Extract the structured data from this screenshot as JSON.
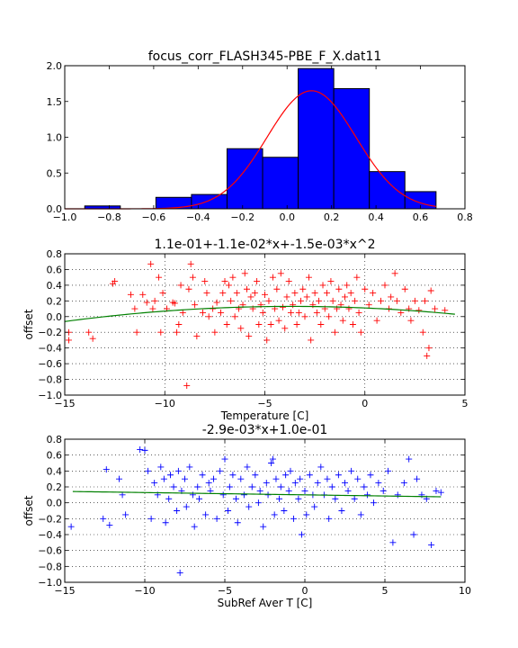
{
  "chart_data": [
    {
      "type": "bar",
      "title": "focus_corr_FLASH345-PBE_F_X.dat11",
      "xlabel": "",
      "ylabel": "",
      "xlim": [
        -1.0,
        0.8
      ],
      "ylim": [
        0.0,
        2.0
      ],
      "xticks": [
        "−1.0",
        "−0.8",
        "−0.6",
        "−0.4",
        "−0.2",
        "0.0",
        "0.2",
        "0.4",
        "0.6",
        "0.8"
      ],
      "yticks": [
        "0.0",
        "0.5",
        "1.0",
        "1.5",
        "2.0"
      ],
      "bar_color": "#0000ff",
      "fit_color": "#ff0000",
      "grid": false,
      "bins": [
        {
          "x0": -0.91,
          "x1": -0.75,
          "value": 0.04
        },
        {
          "x0": -0.75,
          "x1": -0.59,
          "value": 0.0
        },
        {
          "x0": -0.59,
          "x1": -0.43,
          "value": 0.16
        },
        {
          "x0": -0.43,
          "x1": -0.27,
          "value": 0.2
        },
        {
          "x0": -0.27,
          "x1": -0.11,
          "value": 0.84
        },
        {
          "x0": -0.11,
          "x1": 0.05,
          "value": 0.72
        },
        {
          "x0": 0.05,
          "x1": 0.21,
          "value": 1.96
        },
        {
          "x0": 0.21,
          "x1": 0.37,
          "value": 1.68
        },
        {
          "x0": 0.37,
          "x1": 0.53,
          "value": 0.52
        },
        {
          "x0": 0.53,
          "x1": 0.67,
          "value": 0.24
        }
      ],
      "fit_curve": {
        "type": "gaussian",
        "peak": 1.65,
        "mean": 0.11,
        "sigma": 0.2,
        "x_range": [
          -1.0,
          0.67
        ]
      }
    },
    {
      "type": "scatter",
      "title": "1.1e-01+-1.1e-02*x+-1.5e-03*x^2",
      "xlabel": "Temperature [C]",
      "ylabel": "offset",
      "xlim": [
        -15,
        5
      ],
      "ylim": [
        -1.0,
        0.8
      ],
      "xticks": [
        "−15",
        "−10",
        "−5",
        "0",
        "5"
      ],
      "yticks": [
        "−1.0",
        "−0.8",
        "−0.6",
        "−0.4",
        "−0.2",
        "0.0",
        "0.2",
        "0.4",
        "0.6",
        "0.8"
      ],
      "grid": true,
      "marker_color": "#ff0000",
      "fit_color": "#008000",
      "fit": {
        "type": "poly2",
        "c0": 0.11,
        "c1": -0.011,
        "c2": -0.0015,
        "x_range": [
          -15,
          4.5
        ]
      },
      "points": [
        [
          -14.8,
          -0.3
        ],
        [
          -14.8,
          -0.2
        ],
        [
          -13.8,
          -0.2
        ],
        [
          -13.6,
          -0.28
        ],
        [
          -12.6,
          0.42
        ],
        [
          -12.5,
          0.45
        ],
        [
          -11.7,
          0.28
        ],
        [
          -11.5,
          0.1
        ],
        [
          -11.4,
          -0.2
        ],
        [
          -11.1,
          0.28
        ],
        [
          -10.9,
          0.18
        ],
        [
          -10.7,
          0.67
        ],
        [
          -10.6,
          0.1
        ],
        [
          -10.5,
          0.2
        ],
        [
          -10.3,
          0.5
        ],
        [
          -10.2,
          -0.2
        ],
        [
          -10.1,
          0.3
        ],
        [
          -9.9,
          0.1
        ],
        [
          -9.6,
          0.18
        ],
        [
          -9.5,
          0.17
        ],
        [
          -9.4,
          -0.2
        ],
        [
          -9.3,
          -0.1
        ],
        [
          -9.2,
          0.4
        ],
        [
          -9.1,
          0.05
        ],
        [
          -8.9,
          -0.88
        ],
        [
          -8.8,
          0.35
        ],
        [
          -8.7,
          0.67
        ],
        [
          -8.6,
          0.5
        ],
        [
          -8.5,
          0.15
        ],
        [
          -8.4,
          -0.25
        ],
        [
          -8.1,
          0.05
        ],
        [
          -8.0,
          0.45
        ],
        [
          -7.9,
          0.3
        ],
        [
          -7.8,
          0.0
        ],
        [
          -7.6,
          0.1
        ],
        [
          -7.5,
          -0.2
        ],
        [
          -7.4,
          0.18
        ],
        [
          -7.2,
          0.05
        ],
        [
          -7.1,
          0.3
        ],
        [
          -7.0,
          0.45
        ],
        [
          -6.9,
          -0.1
        ],
        [
          -6.8,
          0.4
        ],
        [
          -6.7,
          0.2
        ],
        [
          -6.6,
          0.5
        ],
        [
          -6.5,
          0.0
        ],
        [
          -6.4,
          0.3
        ],
        [
          -6.3,
          0.1
        ],
        [
          -6.2,
          -0.15
        ],
        [
          -6.1,
          0.15
        ],
        [
          -6.0,
          0.55
        ],
        [
          -5.9,
          0.35
        ],
        [
          -5.8,
          -0.25
        ],
        [
          -5.7,
          0.25
        ],
        [
          -5.6,
          0.1
        ],
        [
          -5.5,
          0.3
        ],
        [
          -5.4,
          0.45
        ],
        [
          -5.3,
          -0.1
        ],
        [
          -5.2,
          0.15
        ],
        [
          -5.1,
          0.05
        ],
        [
          -5.0,
          0.28
        ],
        [
          -4.9,
          -0.3
        ],
        [
          -4.8,
          0.2
        ],
        [
          -4.7,
          -0.1
        ],
        [
          -4.6,
          0.5
        ],
        [
          -4.5,
          0.1
        ],
        [
          -4.4,
          0.35
        ],
        [
          -4.3,
          -0.05
        ],
        [
          -4.2,
          0.55
        ],
        [
          -4.1,
          0.12
        ],
        [
          -4.0,
          -0.15
        ],
        [
          -3.9,
          0.25
        ],
        [
          -3.8,
          0.45
        ],
        [
          -3.7,
          0.05
        ],
        [
          -3.6,
          0.15
        ],
        [
          -3.5,
          0.3
        ],
        [
          -3.4,
          -0.1
        ],
        [
          -3.3,
          0.05
        ],
        [
          -3.2,
          0.2
        ],
        [
          -3.1,
          0.35
        ],
        [
          -3.0,
          0.0
        ],
        [
          -2.9,
          0.25
        ],
        [
          -2.8,
          0.5
        ],
        [
          -2.7,
          -0.3
        ],
        [
          -2.6,
          0.15
        ],
        [
          -2.5,
          0.3
        ],
        [
          -2.4,
          0.05
        ],
        [
          -2.3,
          0.2
        ],
        [
          -2.2,
          -0.1
        ],
        [
          -2.1,
          0.4
        ],
        [
          -2.0,
          0.1
        ],
        [
          -1.9,
          0.3
        ],
        [
          -1.8,
          0.0
        ],
        [
          -1.7,
          0.45
        ],
        [
          -1.6,
          0.2
        ],
        [
          -1.5,
          -0.2
        ],
        [
          -1.4,
          0.1
        ],
        [
          -1.3,
          0.35
        ],
        [
          -1.2,
          0.15
        ],
        [
          -1.1,
          -0.05
        ],
        [
          -1.0,
          0.25
        ],
        [
          -0.9,
          0.4
        ],
        [
          -0.8,
          0.1
        ],
        [
          -0.7,
          0.3
        ],
        [
          -0.6,
          -0.1
        ],
        [
          -0.5,
          0.2
        ],
        [
          -0.4,
          0.5
        ],
        [
          -0.3,
          0.05
        ],
        [
          -0.2,
          -0.2
        ],
        [
          0.0,
          0.35
        ],
        [
          0.2,
          0.15
        ],
        [
          0.4,
          0.3
        ],
        [
          0.6,
          -0.05
        ],
        [
          0.8,
          0.2
        ],
        [
          1.0,
          0.4
        ],
        [
          1.2,
          0.1
        ],
        [
          1.3,
          0.25
        ],
        [
          1.5,
          0.55
        ],
        [
          1.6,
          0.2
        ],
        [
          1.8,
          0.05
        ],
        [
          2.0,
          0.35
        ],
        [
          2.2,
          0.1
        ],
        [
          2.3,
          -0.05
        ],
        [
          2.5,
          0.2
        ],
        [
          2.7,
          0.08
        ],
        [
          2.9,
          -0.2
        ],
        [
          3.0,
          0.2
        ],
        [
          3.1,
          -0.5
        ],
        [
          3.2,
          -0.4
        ],
        [
          3.3,
          0.33
        ],
        [
          3.5,
          0.1
        ],
        [
          4.0,
          0.08
        ]
      ]
    },
    {
      "type": "scatter",
      "title": "-2.9e-03*x+1.0e-01",
      "xlabel": "SubRef Aver T [C]",
      "ylabel": "offset",
      "xlim": [
        -15,
        10
      ],
      "ylim": [
        -1.0,
        0.8
      ],
      "xticks": [
        "−15",
        "−10",
        "−5",
        "0",
        "5",
        "10"
      ],
      "yticks": [
        "−1.0",
        "−0.8",
        "−0.6",
        "−0.4",
        "−0.2",
        "0.0",
        "0.2",
        "0.4",
        "0.6",
        "0.8"
      ],
      "grid": true,
      "marker_color": "#0000ff",
      "fit_color": "#008000",
      "fit": {
        "type": "linear",
        "slope": -0.0029,
        "intercept": 0.1,
        "x_range": [
          -14.5,
          8.5
        ]
      },
      "points": [
        [
          -14.6,
          -0.3
        ],
        [
          -12.6,
          -0.2
        ],
        [
          -12.4,
          0.42
        ],
        [
          -12.2,
          -0.28
        ],
        [
          -11.6,
          0.3
        ],
        [
          -11.4,
          0.1
        ],
        [
          -11.2,
          -0.15
        ],
        [
          -10.3,
          0.67
        ],
        [
          -10.0,
          0.66
        ],
        [
          -9.8,
          0.4
        ],
        [
          -9.6,
          -0.2
        ],
        [
          -9.4,
          0.25
        ],
        [
          -9.2,
          0.1
        ],
        [
          -9.0,
          0.45
        ],
        [
          -8.8,
          0.3
        ],
        [
          -8.7,
          -0.25
        ],
        [
          -8.5,
          0.05
        ],
        [
          -8.4,
          0.35
        ],
        [
          -8.2,
          0.2
        ],
        [
          -8.0,
          -0.1
        ],
        [
          -7.9,
          0.4
        ],
        [
          -7.8,
          -0.88
        ],
        [
          -7.7,
          0.15
        ],
        [
          -7.5,
          0.3
        ],
        [
          -7.4,
          -0.05
        ],
        [
          -7.2,
          0.45
        ],
        [
          -7.0,
          0.1
        ],
        [
          -6.9,
          -0.3
        ],
        [
          -6.7,
          0.2
        ],
        [
          -6.6,
          0.05
        ],
        [
          -6.4,
          0.35
        ],
        [
          -6.2,
          -0.15
        ],
        [
          -6.0,
          0.25
        ],
        [
          -5.9,
          0.15
        ],
        [
          -5.7,
          0.3
        ],
        [
          -5.5,
          -0.2
        ],
        [
          -5.3,
          0.4
        ],
        [
          -5.1,
          0.1
        ],
        [
          -5.0,
          0.55
        ],
        [
          -4.8,
          -0.1
        ],
        [
          -4.7,
          0.2
        ],
        [
          -4.5,
          0.35
        ],
        [
          -4.3,
          0.05
        ],
        [
          -4.2,
          -0.25
        ],
        [
          -4.0,
          0.3
        ],
        [
          -3.8,
          0.1
        ],
        [
          -3.6,
          0.45
        ],
        [
          -3.5,
          -0.05
        ],
        [
          -3.3,
          0.2
        ],
        [
          -3.1,
          0.35
        ],
        [
          -2.9,
          0.0
        ],
        [
          -2.8,
          0.15
        ],
        [
          -2.6,
          -0.3
        ],
        [
          -2.4,
          0.25
        ],
        [
          -2.3,
          0.1
        ],
        [
          -2.1,
          0.5
        ],
        [
          -2.0,
          0.55
        ],
        [
          -1.9,
          -0.15
        ],
        [
          -1.8,
          0.3
        ],
        [
          -1.6,
          0.05
        ],
        [
          -1.5,
          0.2
        ],
        [
          -1.3,
          -0.1
        ],
        [
          -1.2,
          0.35
        ],
        [
          -1.0,
          0.15
        ],
        [
          -0.9,
          0.4
        ],
        [
          -0.7,
          -0.2
        ],
        [
          -0.6,
          0.25
        ],
        [
          -0.4,
          0.05
        ],
        [
          -0.3,
          0.3
        ],
        [
          -0.2,
          -0.4
        ],
        [
          0.0,
          0.15
        ],
        [
          0.1,
          -0.15
        ],
        [
          0.3,
          0.35
        ],
        [
          0.5,
          0.1
        ],
        [
          0.6,
          -0.05
        ],
        [
          0.8,
          0.25
        ],
        [
          1.0,
          0.45
        ],
        [
          1.2,
          0.1
        ],
        [
          1.4,
          0.3
        ],
        [
          1.5,
          -0.2
        ],
        [
          1.7,
          0.2
        ],
        [
          1.9,
          0.05
        ],
        [
          2.1,
          0.35
        ],
        [
          2.3,
          -0.1
        ],
        [
          2.5,
          0.25
        ],
        [
          2.7,
          0.15
        ],
        [
          2.9,
          0.4
        ],
        [
          3.1,
          0.05
        ],
        [
          3.3,
          0.3
        ],
        [
          3.5,
          -0.15
        ],
        [
          3.7,
          0.2
        ],
        [
          3.9,
          0.1
        ],
        [
          4.1,
          0.35
        ],
        [
          4.3,
          0.0
        ],
        [
          4.6,
          0.25
        ],
        [
          4.9,
          0.15
        ],
        [
          5.2,
          0.4
        ],
        [
          5.5,
          -0.5
        ],
        [
          5.8,
          0.1
        ],
        [
          6.2,
          0.25
        ],
        [
          6.5,
          0.55
        ],
        [
          6.8,
          -0.4
        ],
        [
          7.0,
          0.3
        ],
        [
          7.3,
          0.1
        ],
        [
          7.6,
          0.05
        ],
        [
          7.9,
          -0.53
        ],
        [
          8.2,
          0.15
        ],
        [
          8.5,
          0.13
        ]
      ]
    }
  ]
}
